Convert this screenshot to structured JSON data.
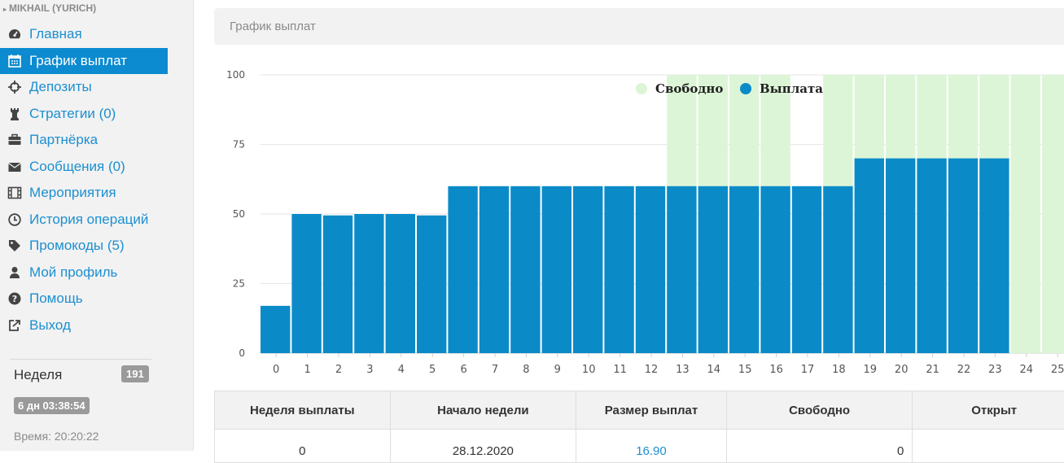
{
  "sidebar": {
    "user_name": "MIKHAIL (YURICH)",
    "menu": [
      {
        "label": "Главная",
        "icon": "dashboard-icon"
      },
      {
        "label": "График выплат",
        "icon": "calendar-icon",
        "active": true
      },
      {
        "label": "Депозиты",
        "icon": "crosshair-icon"
      },
      {
        "label": "Стратегии (0)",
        "icon": "chess-rook-icon"
      },
      {
        "label": "Партнёрка",
        "icon": "briefcase-icon"
      },
      {
        "label": "Сообщения (0)",
        "icon": "envelope-icon"
      },
      {
        "label": "Мероприятия",
        "icon": "film-icon"
      },
      {
        "label": "История операций",
        "icon": "clock-icon"
      },
      {
        "label": "Промокоды (5)",
        "icon": "tag-icon"
      },
      {
        "label": "Мой профиль",
        "icon": "user-icon"
      },
      {
        "label": "Помощь",
        "icon": "question-icon"
      },
      {
        "label": "Выход",
        "icon": "logout-icon"
      }
    ],
    "week_label": "Неделя",
    "week_number": "191",
    "countdown": "6 дн 03:38:54",
    "time": "Время: 20:20:22"
  },
  "header": {
    "title": "График выплат"
  },
  "chart_data": {
    "type": "bar",
    "categories": [
      "0",
      "1",
      "2",
      "3",
      "4",
      "5",
      "6",
      "7",
      "8",
      "9",
      "10",
      "11",
      "12",
      "13",
      "14",
      "15",
      "16",
      "17",
      "18",
      "19",
      "20",
      "21",
      "22",
      "23",
      "24",
      "25"
    ],
    "series": [
      {
        "name": "Выплата",
        "color": "#0a8bc8",
        "values": [
          17,
          50,
          49.5,
          50,
          50,
          49.5,
          60,
          60,
          60,
          60,
          60,
          60,
          60,
          60,
          60,
          60,
          60,
          60,
          60,
          70,
          70,
          70,
          70,
          70,
          0,
          0
        ]
      },
      {
        "name": "Свободно",
        "color": "#dcf5d6",
        "values": [
          0,
          0,
          0,
          0,
          0,
          0,
          0,
          0,
          0,
          0,
          0,
          0,
          0,
          40,
          40,
          40,
          40,
          0,
          40,
          30,
          30,
          30,
          30,
          30,
          100,
          100
        ]
      }
    ],
    "yticks": [
      "0",
      "25",
      "50",
      "75",
      "100"
    ],
    "ylim": [
      0,
      100
    ],
    "stacked": true,
    "legend_position": "top-right"
  },
  "table": {
    "headers": [
      "Неделя выплаты",
      "Начало недели",
      "Размер выплат",
      "Свободно",
      "Открыт"
    ],
    "rows": [
      [
        "0",
        "28.12.2020",
        "16.90",
        "0",
        ""
      ]
    ]
  }
}
